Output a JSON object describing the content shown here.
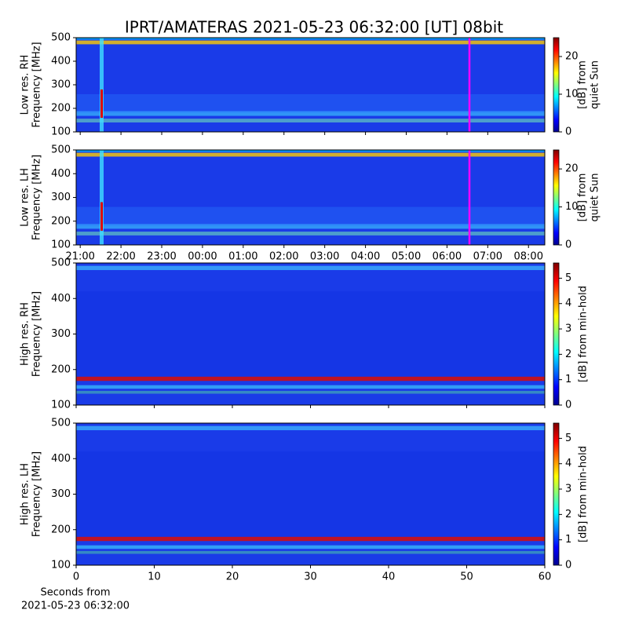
{
  "title": "IPRT/AMATERAS 2021-05-23 06:32:00 [UT]   08bit",
  "chart_data": [
    {
      "type": "spectrogram",
      "ylabel": [
        "Low res. RH",
        "Frequency [MHz]"
      ],
      "ylim": [
        100,
        500
      ],
      "yticks": [
        100,
        200,
        300,
        400,
        500
      ],
      "xlim": [
        20.9,
        32.4
      ],
      "colorbar": {
        "label": [
          "[dB] from",
          "quiet Sun"
        ],
        "lim": [
          0,
          25
        ],
        "ticks": [
          0,
          10,
          20
        ]
      }
    },
    {
      "type": "spectrogram",
      "ylabel": [
        "Low res. LH",
        "Frequency [MHz]"
      ],
      "ylim": [
        100,
        500
      ],
      "yticks": [
        100,
        200,
        300,
        400,
        500
      ],
      "xlim": [
        20.9,
        32.4
      ],
      "xticks": [
        {
          "value": 21,
          "label": "21:00"
        },
        {
          "value": 22,
          "label": "22:00"
        },
        {
          "value": 23,
          "label": "23:00"
        },
        {
          "value": 24,
          "label": "00:00"
        },
        {
          "value": 25,
          "label": "01:00"
        },
        {
          "value": 26,
          "label": "02:00"
        },
        {
          "value": 27,
          "label": "03:00"
        },
        {
          "value": 28,
          "label": "04:00"
        },
        {
          "value": 29,
          "label": "05:00"
        },
        {
          "value": 30,
          "label": "06:00"
        },
        {
          "value": 31,
          "label": "07:00"
        },
        {
          "value": 32,
          "label": "08:00"
        }
      ],
      "colorbar": {
        "label": [
          "[dB] from",
          "quiet Sun"
        ],
        "lim": [
          0,
          25
        ],
        "ticks": [
          0,
          10,
          20
        ]
      }
    },
    {
      "type": "spectrogram",
      "ylabel": [
        "High res. RH",
        "Frequency [MHz]"
      ],
      "ylim": [
        100,
        500
      ],
      "yticks": [
        100,
        200,
        300,
        400,
        500
      ],
      "xlim": [
        0,
        60
      ],
      "colorbar": {
        "label": [
          "[dB] from min-hold"
        ],
        "lim": [
          0,
          5.6
        ],
        "ticks": [
          0,
          1,
          2,
          3,
          4,
          5
        ]
      }
    },
    {
      "type": "spectrogram",
      "ylabel": [
        "High res. LH",
        "Frequency [MHz]"
      ],
      "ylim": [
        100,
        500
      ],
      "yticks": [
        100,
        200,
        300,
        400,
        500
      ],
      "xlim": [
        0,
        60
      ],
      "xticks": [
        0,
        10,
        20,
        30,
        40,
        50,
        60
      ],
      "xlabel": [
        "Seconds from",
        "2021-05-23 06:32:00"
      ],
      "colorbar": {
        "label": [
          "[dB] from min-hold"
        ],
        "lim": [
          0,
          5.6
        ],
        "ticks": [
          0,
          1,
          2,
          3,
          4,
          5
        ]
      }
    }
  ]
}
